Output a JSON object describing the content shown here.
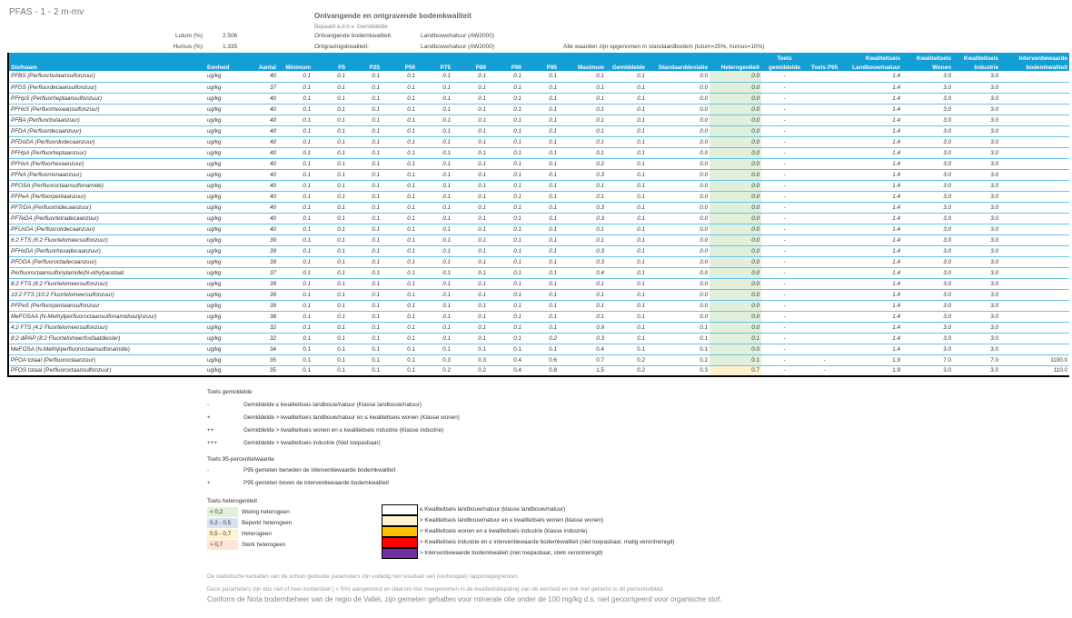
{
  "header": {
    "sheet_title": "PFAS - 1 - 2 m-mv",
    "title": "Ontvangende en ontgravende bodemkwaliteit",
    "subtitle": "Bepaald a.d.h.v. Gemiddelde",
    "lutum_label": "Lutum (%)",
    "lutum_value": "2.506",
    "humus_label": "Humus (%)",
    "humus_value": "1.335",
    "ontv_label": "Ontvangende bodemkwaliteit:",
    "ontv_value": "Landbouw/natuur (AW2000)",
    "ontg_label": "Ontgravingskwaliteit:",
    "ontg_value": "Landbouw/natuur (AW2000)",
    "note": "Alle waarden zijn opgenomen in standaardbodem (lutum=25%, humus=10%)"
  },
  "columns": {
    "name": "Stofnaam",
    "unit": "Eenheid",
    "count": "Aantal",
    "min": "Minimum",
    "p5": "P5",
    "p25": "P25",
    "p50": "P50",
    "p75": "P75",
    "p80": "P80",
    "p90": "P90",
    "p95": "P95",
    "max": "Maximum",
    "mean": "Gemiddelde",
    "sd": "Standaarddeviatie",
    "het": "Heterogeniteit",
    "tg1": "Toets",
    "tg2": "gemiddelde",
    "tp95": "Toets P95",
    "kl1": "Kwaliteitseis",
    "kl2": "Landbouw/natuur",
    "kw1": "Kwaliteitseis",
    "kw2": "Wonen",
    "ki1": "Kwaliteitseis",
    "ki2": "Industrie",
    "iv1": "Interventiewaarde",
    "iv2": "bodemkwaliteit"
  },
  "rows": [
    [
      "PFBS (Perfluorbutaansulfonzuur)",
      "ug/kg",
      "40",
      "0.1",
      "0.1",
      "0.1",
      "0.1",
      "0.1",
      "0.1",
      "0.1",
      "0.1",
      "0.1",
      "0.1",
      "0.0",
      "0.0",
      "-",
      "",
      "1.4",
      "3.0",
      "3.0",
      "",
      true
    ],
    [
      "PFDS (Perfluordecaansulfonzuur)",
      "ug/kg",
      "37",
      "0.1",
      "0.1",
      "0.1",
      "0.1",
      "0.1",
      "0.1",
      "0.1",
      "0.1",
      "0.1",
      "0.1",
      "0.0",
      "0.0",
      "-",
      "",
      "1.4",
      "3.0",
      "3.0",
      "",
      true
    ],
    [
      "PFHpS (Perfluorheptaansulfonzuur)",
      "ug/kg",
      "40",
      "0.1",
      "0.1",
      "0.1",
      "0.1",
      "0.1",
      "0.1",
      "0.1",
      "0.1",
      "0.1",
      "0.1",
      "0.0",
      "0.0",
      "-",
      "",
      "1.4",
      "3.0",
      "3.0",
      "",
      true
    ],
    [
      "PFHxS (Perfluorhexaansulfonzuur)",
      "ug/kg",
      "40",
      "0.1",
      "0.1",
      "0.1",
      "0.1",
      "0.1",
      "0.1",
      "0.1",
      "0.1",
      "0.1",
      "0.1",
      "0.0",
      "0.0",
      "-",
      "",
      "1.4",
      "3.0",
      "3.0",
      "",
      true
    ],
    [
      "PFBA (Perfluorbutaanzuur)",
      "ug/kg",
      "40",
      "0.1",
      "0.1",
      "0.1",
      "0.1",
      "0.1",
      "0.1",
      "0.1",
      "0.1",
      "0.1",
      "0.1",
      "0.0",
      "0.0",
      "-",
      "",
      "1.4",
      "3.0",
      "3.0",
      "",
      true
    ],
    [
      "PFDA (Perfluordecaanzuur)",
      "ug/kg",
      "40",
      "0.1",
      "0.1",
      "0.1",
      "0.1",
      "0.1",
      "0.1",
      "0.1",
      "0.1",
      "0.1",
      "0.1",
      "0.0",
      "0.0",
      "-",
      "",
      "1.4",
      "3.0",
      "3.0",
      "",
      true
    ],
    [
      "PFDoDA (Perfluordodecaanzuur)",
      "ug/kg",
      "40",
      "0.1",
      "0.1",
      "0.1",
      "0.1",
      "0.1",
      "0.1",
      "0.1",
      "0.1",
      "0.1",
      "0.1",
      "0.0",
      "0.0",
      "-",
      "",
      "1.4",
      "3.0",
      "3.0",
      "",
      true
    ],
    [
      "PFHpA (Perfluorheptaanzuur)",
      "ug/kg",
      "40",
      "0.1",
      "0.1",
      "0.1",
      "0.1",
      "0.1",
      "0.1",
      "0.1",
      "0.1",
      "0.1",
      "0.1",
      "0.0",
      "0.0",
      "-",
      "",
      "1.4",
      "3.0",
      "3.0",
      "",
      true
    ],
    [
      "PFHxA (Perfluorhexaanzuur)",
      "ug/kg",
      "40",
      "0.1",
      "0.1",
      "0.1",
      "0.1",
      "0.1",
      "0.1",
      "0.1",
      "0.1",
      "0.2",
      "0.1",
      "0.0",
      "0.0",
      "-",
      "",
      "1.4",
      "3.0",
      "3.0",
      "",
      true
    ],
    [
      "PFNA (Perfluornonaanzuur)",
      "ug/kg",
      "40",
      "0.1",
      "0.1",
      "0.1",
      "0.1",
      "0.1",
      "0.1",
      "0.1",
      "0.1",
      "0.3",
      "0.1",
      "0.0",
      "0.0",
      "-",
      "",
      "1.4",
      "3.0",
      "3.0",
      "",
      true
    ],
    [
      "PFOSA (Perfluoroctaansulfonamide)",
      "ug/kg",
      "40",
      "0.1",
      "0.1",
      "0.1",
      "0.1",
      "0.1",
      "0.1",
      "0.1",
      "0.1",
      "0.1",
      "0.1",
      "0.0",
      "0.0",
      "-",
      "",
      "1.4",
      "3.0",
      "3.0",
      "",
      true
    ],
    [
      "PFPeA (Perfluorpentaanzuur)",
      "ug/kg",
      "40",
      "0.1",
      "0.1",
      "0.1",
      "0.1",
      "0.1",
      "0.1",
      "0.1",
      "0.1",
      "0.1",
      "0.1",
      "0.0",
      "0.0",
      "-",
      "",
      "1.4",
      "3.0",
      "3.0",
      "",
      true
    ],
    [
      "PFTrDA (Perfluortridecaanzuur)",
      "ug/kg",
      "40",
      "0.1",
      "0.1",
      "0.1",
      "0.1",
      "0.1",
      "0.1",
      "0.1",
      "0.1",
      "0.3",
      "0.1",
      "0.0",
      "0.0",
      "-",
      "",
      "1.4",
      "3.0",
      "3.0",
      "",
      true
    ],
    [
      "PFTeDA (Perfluortetradecaanzuur)",
      "ug/kg",
      "40",
      "0.1",
      "0.1",
      "0.1",
      "0.1",
      "0.1",
      "0.1",
      "0.1",
      "0.1",
      "0.3",
      "0.1",
      "0.0",
      "0.0",
      "-",
      "",
      "1.4",
      "3.0",
      "3.0",
      "",
      true
    ],
    [
      "PFUnDA (Perfluorundecaanzuur)",
      "ug/kg",
      "40",
      "0.1",
      "0.1",
      "0.1",
      "0.1",
      "0.1",
      "0.1",
      "0.1",
      "0.1",
      "0.1",
      "0.1",
      "0.0",
      "0.0",
      "-",
      "",
      "1.4",
      "3.0",
      "3.0",
      "",
      true
    ],
    [
      "6:2 FTS (6:2 Fluortelomeersulfonzuur)",
      "ug/kg",
      "39",
      "0.1",
      "0.1",
      "0.1",
      "0.1",
      "0.1",
      "0.1",
      "0.1",
      "0.1",
      "0.1",
      "0.1",
      "0.0",
      "0.0",
      "-",
      "",
      "1.4",
      "3.0",
      "3.0",
      "",
      true
    ],
    [
      "PFHxDA (Perfluorhexadecaanzuur)",
      "ug/kg",
      "39",
      "0.1",
      "0.1",
      "0.1",
      "0.1",
      "0.1",
      "0.1",
      "0.1",
      "0.1",
      "0.3",
      "0.1",
      "0.0",
      "0.0",
      "-",
      "",
      "1.4",
      "3.0",
      "3.0",
      "",
      true
    ],
    [
      "PFODA (Perfluoroctadecaanzuur)",
      "ug/kg",
      "39",
      "0.1",
      "0.1",
      "0.1",
      "0.1",
      "0.1",
      "0.1",
      "0.1",
      "0.1",
      "0.3",
      "0.1",
      "0.0",
      "0.0",
      "-",
      "",
      "1.4",
      "3.0",
      "3.0",
      "",
      true
    ],
    [
      "Perfluoroctaansulfonylamide(N-ethyl)acetaat",
      "ug/kg",
      "37",
      "0.1",
      "0.1",
      "0.1",
      "0.1",
      "0.1",
      "0.1",
      "0.1",
      "0.1",
      "0.4",
      "0.1",
      "0.0",
      "0.0",
      "-",
      "",
      "1.4",
      "3.0",
      "3.0",
      "",
      true
    ],
    [
      "8:2 FTS (8:2 Fluortelomeersulfonzuur)",
      "ug/kg",
      "39",
      "0.1",
      "0.1",
      "0.1",
      "0.1",
      "0.1",
      "0.1",
      "0.1",
      "0.1",
      "0.1",
      "0.1",
      "0.0",
      "0.0",
      "-",
      "",
      "1.4",
      "3.0",
      "3.0",
      "",
      true
    ],
    [
      "10:2 FTS (10:2 Fluortelomeersulfonzuur)",
      "ug/kg",
      "39",
      "0.1",
      "0.1",
      "0.1",
      "0.1",
      "0.1",
      "0.1",
      "0.1",
      "0.1",
      "0.1",
      "0.1",
      "0.0",
      "0.0",
      "-",
      "",
      "1.4",
      "3.0",
      "3.0",
      "",
      true
    ],
    [
      "PFPeS (Perfluorpentaansulfonzuur",
      "ug/kg",
      "39",
      "0.1",
      "0.1",
      "0.1",
      "0.1",
      "0.1",
      "0.1",
      "0.1",
      "0.1",
      "0.1",
      "0.1",
      "0.0",
      "0.0",
      "-",
      "",
      "1.4",
      "3.0",
      "3.0",
      "",
      true
    ],
    [
      "MeFOSAA (N-Methylperfluoroctaansulfonamidoazijnzuur)",
      "ug/kg",
      "38",
      "0.1",
      "0.1",
      "0.1",
      "0.1",
      "0.1",
      "0.1",
      "0.1",
      "0.1",
      "0.1",
      "0.1",
      "0.0",
      "0.0",
      "-",
      "",
      "1.4",
      "3.0",
      "3.0",
      "",
      true
    ],
    [
      "4:2 FTS (4:2 Fluortelomeersulfonzuur)",
      "ug/kg",
      "32",
      "0.1",
      "0.1",
      "0.1",
      "0.1",
      "0.1",
      "0.1",
      "0.1",
      "0.1",
      "0.9",
      "0.1",
      "0.1",
      "0.0",
      "-",
      "",
      "1.4",
      "3.0",
      "3.0",
      "",
      true
    ],
    [
      "8:2 diPAP (8:2 Fluortelomeerfosfaatdiester)",
      "ug/kg",
      "32",
      "0.1",
      "0.1",
      "0.1",
      "0.1",
      "0.1",
      "0.1",
      "0.1",
      "0.2",
      "0.3",
      "0.1",
      "0.1",
      "0.1",
      "-",
      "",
      "1.4",
      "3.0",
      "3.0",
      "",
      true
    ],
    [
      "MeFOSA  (N-Methylperfluoroctaansulfonamide)",
      "ug/kg",
      "34",
      "0.1",
      "0.1",
      "0.1",
      "0.1",
      "0.1",
      "0.1",
      "0.1",
      "0.1",
      "0.4",
      "0.1",
      "0.1",
      "0.0",
      "-",
      "",
      "1.4",
      "3.0",
      "3.0",
      "",
      false
    ],
    [
      "PFOA totaal (Perfluoroctaanzuur)",
      "ug/kg",
      "35",
      "0.1",
      "0.1",
      "0.1",
      "0.1",
      "0.3",
      "0.3",
      "0.4",
      "0.6",
      "0.7",
      "0.2",
      "0.2",
      "0.1",
      "-",
      "-",
      "1.9",
      "7.0",
      "7.0",
      "1100.0",
      false
    ],
    [
      "PFOS totaal (Perfluoroctaansulfonzuur)",
      "ug/kg",
      "35",
      "0.1",
      "0.1",
      "0.1",
      "0.1",
      "0.2",
      "0.2",
      "0.4",
      "0.8",
      "1.5",
      "0.2",
      "0.3",
      "0.7",
      "-",
      "-",
      "1.9",
      "3.0",
      "3.0",
      "110.0",
      false
    ]
  ],
  "legend": {
    "toets_gem_title": "Toets gemiddelde",
    "toets_gem": [
      {
        "sym": "-",
        "text": "Gemiddelde ≤ kwaliteitseis landbouw/natuur (Klasse landbouw/natuur)"
      },
      {
        "sym": "+",
        "text": "Gemiddelde > kwaliteitseis landbouw/natuur en ≤ kwaliteitseis wonen (Klasse wonen)"
      },
      {
        "sym": "++",
        "text": "Gemiddelde > kwaliteitseis wonen en ≤ kwaliteitseis industrie (Klasse industrie)"
      },
      {
        "sym": "+++",
        "text": "Gemiddelde > kwaliteitseis industrie (Niet toepasbaar)"
      }
    ],
    "toets_p95_title": "Toets 95-percentielwaarde",
    "toets_p95": [
      {
        "sym": "-",
        "text": "P95 gemeten beneden de interventiewaarde bodemkwaliteit"
      },
      {
        "sym": "+",
        "text": "P95 gemeten boven de interventiewaarde bodemkwaliteit"
      }
    ],
    "het_title": "Toets heterogeniteit",
    "het": [
      {
        "range": "< 0,2",
        "text": "Weinig heterogeen",
        "color": "#e2efda"
      },
      {
        "range": "0,2 - 0,5",
        "text": "Beperkt heterogeen",
        "color": "#d9e1f2"
      },
      {
        "range": "0,5 - 0,7",
        "text": "Heterogeen",
        "color": "#fff2cc"
      },
      {
        "range": "> 0,7",
        "text": "Sterk heterogeen",
        "color": "#fce4d6"
      }
    ],
    "classes": [
      {
        "text": "≤ Kwaliteitseis landbouw/natuur (klasse landbouw/natuur)",
        "color": "#ffffff"
      },
      {
        "text": "> Kwaliteitseis landbouw/natuur en ≤ kwaliteitseis wonen (klasse wonen)",
        "color": "#fff2cc"
      },
      {
        "text": "> Kwaliteitseis wonen en ≤ kwaliteitseis industrie (klasse industrie)",
        "color": "#ffc000"
      },
      {
        "text": "> Kwaliteitseis industrie en ≤ interventiewaarde bodemkwaliteit (niet toepasbaar, matig verontreinigd)",
        "color": "#ff0000"
      },
      {
        "text": "> Interventiewaarde bodemkwalieit (niet toepasbaar, sterk verontreinigd)",
        "color": "#7030a0"
      }
    ]
  },
  "footer": {
    "line1": "De statistische kentallen van de schuin gedrukte parameters zijn volledig het resultaat van (verhoogde) rapportagegrenzen.",
    "line2": "Deze parameters zijn dus niet of heel incidenteel ( < 5%) aangetoond en daarom niet meegenomen in de kwaliteitsbepaling van de eenheid en ook niet getoetst in dit percentielblad.",
    "line3": "Conform de Nota bodembeheer van de regio de Vallei, zijn gemeten gehalten voor minerale olie onder de 100 mg/kg d.s. niet gecorrigeerd voor organische stof."
  },
  "colors": {
    "header_bg": "#139fd6",
    "row_border": "#63c4ec"
  }
}
